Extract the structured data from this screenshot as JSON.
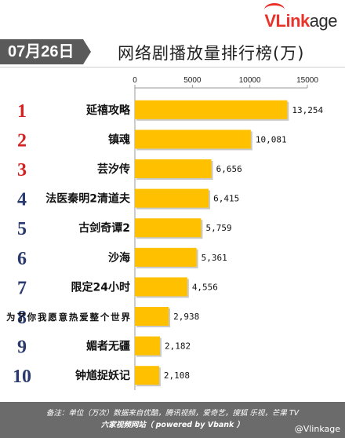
{
  "brand": {
    "name": "VLinkage",
    "v_part": "V",
    "rest_part": "Link",
    "tail_part": "age"
  },
  "header": {
    "date": "07月26日",
    "title": "网络剧播放量排行榜(万)"
  },
  "chart_data": {
    "type": "bar",
    "orientation": "horizontal",
    "title": "网络剧播放量排行榜(万)",
    "ranks": [
      "1",
      "2",
      "3",
      "4",
      "5",
      "6",
      "7",
      "8",
      "9",
      "10"
    ],
    "categories": [
      "延禧攻略",
      "镇魂",
      "芸汐传",
      "法医秦明2清道夫",
      "古剑奇谭2",
      "沙海",
      "限定24小时",
      "为了你我愿意热爱整个世界",
      "媚者无疆",
      "钟馗捉妖记"
    ],
    "values": [
      13254,
      10081,
      6656,
      6415,
      5759,
      5361,
      4556,
      2938,
      2182,
      2108
    ],
    "value_labels": [
      "13,254",
      "10,081",
      "6,656",
      "6,415",
      "5,759",
      "5,361",
      "4,556",
      "2,938",
      "2,182",
      "2,108"
    ],
    "x_ticks": [
      "0",
      "5000",
      "10000",
      "15000"
    ],
    "xlim": [
      0,
      15000
    ],
    "bar_color": "#ffc000",
    "rank_colors": [
      "#d42222",
      "#d42222",
      "#d42222",
      "#2a3a6e",
      "#2a3a6e",
      "#2a3a6e",
      "#2a3a6e",
      "#2a3a6e",
      "#2a3a6e",
      "#2a3a6e"
    ]
  },
  "footer": {
    "line1": "备注：单位（万次）数据来自优酷，腾讯视频，爱奇艺，搜狐 乐视，芒果 TV",
    "line2": "六家视频网站（ powered by Vbank ）",
    "watermark": "@Vlinkage"
  }
}
